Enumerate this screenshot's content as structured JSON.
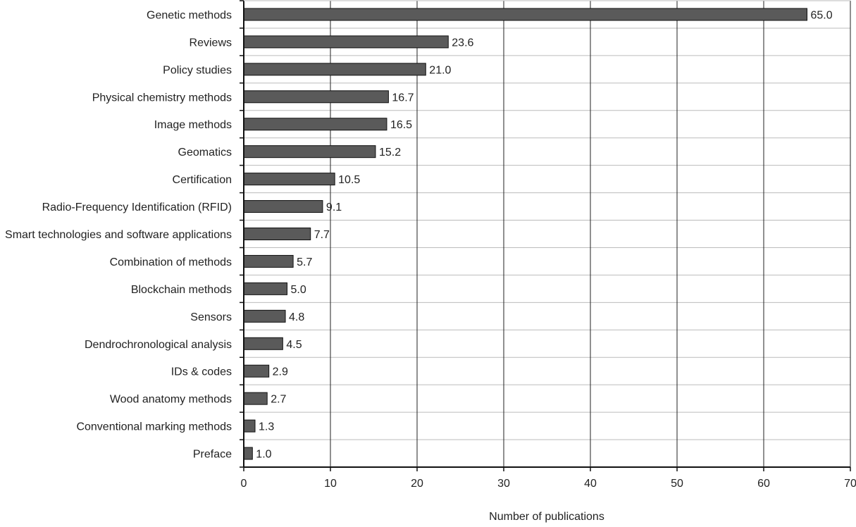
{
  "chart_data": {
    "type": "bar",
    "orientation": "horizontal",
    "title": "",
    "xlabel": "Number of publications",
    "ylabel": "",
    "xlim": [
      0,
      70
    ],
    "xticks": [
      0,
      10,
      20,
      30,
      40,
      50,
      60,
      70
    ],
    "grid": true,
    "categories": [
      "Genetic methods",
      "Reviews",
      "Policy studies",
      "Physical chemistry methods",
      "Image methods",
      "Geomatics",
      "Certification",
      "Radio-Frequency Identification (RFID)",
      "Smart technologies and software applications",
      "Combination of methods",
      "Blockchain methods",
      "Sensors",
      "Dendrochronological analysis",
      "IDs & codes",
      "Wood anatomy methods",
      "Conventional marking methods",
      "Preface"
    ],
    "values": [
      65.0,
      23.6,
      21.0,
      16.7,
      16.5,
      15.2,
      10.5,
      9.1,
      7.7,
      5.7,
      5.0,
      4.8,
      4.5,
      2.9,
      2.7,
      1.3,
      1.0
    ],
    "data_labels": [
      "65.0",
      "23.6",
      "21.0",
      "16.7",
      "16.5",
      "15.2",
      "10.5",
      "9.1",
      "7.7",
      "5.7",
      "5.0",
      "4.8",
      "4.5",
      "2.9",
      "2.7",
      "1.3",
      "1.0"
    ],
    "colors": {
      "bar": "#5a5a5a",
      "bar_border": "#111111",
      "grid_vertical": "#222222",
      "grid_horizontal": "#bbbbbb"
    }
  }
}
